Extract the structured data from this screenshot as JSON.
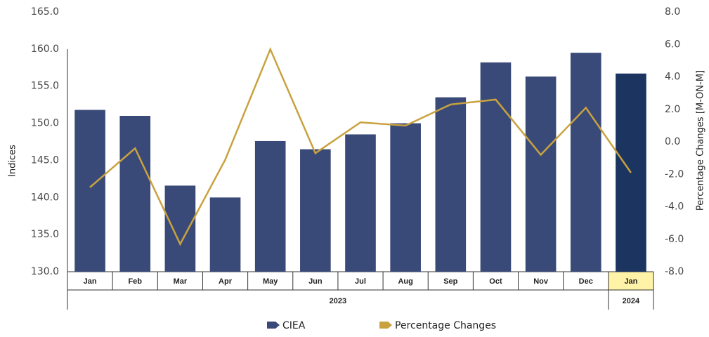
{
  "chart_data": {
    "type": "bar-line",
    "category_groups": [
      {
        "name": "2023",
        "categories": [
          "Jan",
          "Feb",
          "Mar",
          "Apr",
          "May",
          "Jun",
          "Jul",
          "Aug",
          "Sep",
          "Oct",
          "Nov",
          "Dec"
        ]
      },
      {
        "name": "2024",
        "categories": [
          "Jan"
        ]
      }
    ],
    "ylabel": "Indices",
    "y2label": "Percentage Changes [M-ON-M]",
    "ylim": [
      130,
      165
    ],
    "yticks": [
      {
        "value": 130,
        "label": "130.0"
      },
      {
        "value": 135,
        "label": "135.0"
      },
      {
        "value": 140,
        "label": "140.0"
      },
      {
        "value": 145,
        "label": "145.0"
      },
      {
        "value": 150,
        "label": "150.0"
      },
      {
        "value": 155,
        "label": "155.0"
      },
      {
        "value": 160,
        "label": "160.0"
      },
      {
        "value": 165,
        "label": "165.0"
      }
    ],
    "y2lim": [
      -8,
      8
    ],
    "y2ticks": [
      {
        "value": -8,
        "label": "-8.0"
      },
      {
        "value": -6,
        "label": "-6.0"
      },
      {
        "value": -4,
        "label": "-4.0"
      },
      {
        "value": -2,
        "label": "-2.0"
      },
      {
        "value": 0,
        "label": "0.0"
      },
      {
        "value": 2,
        "label": "2.0"
      },
      {
        "value": 4,
        "label": "4.0"
      },
      {
        "value": 6,
        "label": "6.0"
      },
      {
        "value": 8,
        "label": "8.0"
      }
    ],
    "series": [
      {
        "name": "CIEA",
        "type": "bar",
        "color": "#3a4a78",
        "highlight_color": "#1b3560",
        "values": [
          151.8,
          151.0,
          141.6,
          140.0,
          147.6,
          146.5,
          148.5,
          150.0,
          153.5,
          158.2,
          156.3,
          159.5,
          156.7
        ]
      },
      {
        "name": "Percentage Changes",
        "type": "line",
        "axis": "y2",
        "color": "#c9a23f",
        "values": [
          -2.8,
          -0.4,
          -6.3,
          -1.1,
          5.7,
          -0.7,
          1.2,
          1.0,
          2.3,
          2.6,
          -0.8,
          2.1,
          -1.9
        ]
      }
    ]
  }
}
